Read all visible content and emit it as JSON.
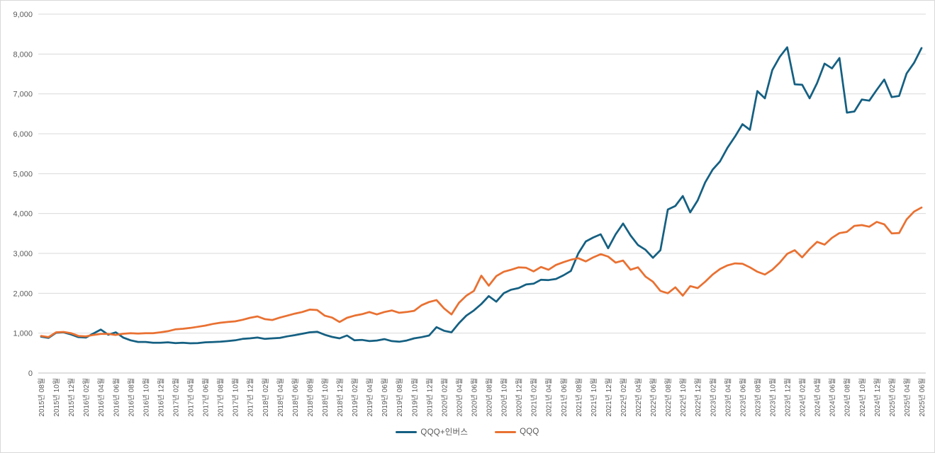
{
  "chart_data": {
    "type": "line",
    "title": "",
    "xlabel": "",
    "ylabel": "",
    "ylim": [
      0,
      9000
    ],
    "y_tick_step": 1000,
    "y_tick_labels": [
      "0",
      "1,000",
      "2,000",
      "3,000",
      "4,000",
      "5,000",
      "6,000",
      "7,000",
      "8,000",
      "9,000"
    ],
    "grid": true,
    "legend_position": "bottom",
    "x_start": "2015년 08월",
    "x_end": "2025년 06월",
    "x_frequency": "monthly",
    "x_label_interval_months": 2,
    "x_labels": [
      "2015년 08월",
      "2015년 10월",
      "2015년 12월",
      "2016년 02월",
      "2016년 04월",
      "2016년 06월",
      "2016년 08월",
      "2016년 10월",
      "2016년 12월",
      "2017년 02월",
      "2017년 04월",
      "2017년 06월",
      "2017년 08월",
      "2017년 10월",
      "2017년 12월",
      "2018년 02월",
      "2018년 04월",
      "2018년 06월",
      "2018년 08월",
      "2018년 10월",
      "2018년 12월",
      "2019년 02월",
      "2019년 04월",
      "2019년 06월",
      "2019년 08월",
      "2019년 10월",
      "2019년 12월",
      "2020년 02월",
      "2020년 04월",
      "2020년 06월",
      "2020년 08월",
      "2020년 10월",
      "2020년 12월",
      "2021년 02월",
      "2021년 04월",
      "2021년 06월",
      "2021년 08월",
      "2021년 10월",
      "2021년 12월",
      "2022년 02월",
      "2022년 04월",
      "2022년 06월",
      "2022년 08월",
      "2022년 10월",
      "2022년 12월",
      "2023년 02월",
      "2023년 04월",
      "2023년 06월",
      "2023년 08월",
      "2023년 10월",
      "2023년 12월",
      "2024년 02월",
      "2024년 04월",
      "2024년 06월",
      "2024년 08월",
      "2024년 10월",
      "2024년 12월",
      "2025년 02월",
      "2025년 04월",
      "2025년 06월"
    ],
    "series": [
      {
        "name": "QQQ+인버스",
        "color": "#156082",
        "values": [
          910,
          880,
          1010,
          1020,
          970,
          900,
          890,
          990,
          1090,
          960,
          1020,
          890,
          820,
          780,
          780,
          760,
          760,
          770,
          750,
          760,
          745,
          750,
          770,
          775,
          785,
          800,
          820,
          855,
          870,
          890,
          855,
          870,
          880,
          920,
          950,
          985,
          1020,
          1035,
          960,
          905,
          870,
          940,
          820,
          830,
          800,
          815,
          850,
          800,
          785,
          815,
          870,
          900,
          940,
          1150,
          1060,
          1020,
          1250,
          1440,
          1570,
          1730,
          1930,
          1790,
          2000,
          2090,
          2130,
          2220,
          2240,
          2340,
          2330,
          2360,
          2450,
          2560,
          3000,
          3300,
          3400,
          3480,
          3130,
          3480,
          3750,
          3450,
          3210,
          3090,
          2890,
          3080,
          4100,
          4190,
          4440,
          4030,
          4330,
          4780,
          5100,
          5310,
          5650,
          5930,
          6240,
          6100,
          7070,
          6890,
          7600,
          7930,
          8170,
          7240,
          7230,
          6890,
          7270,
          7760,
          7640,
          7900,
          6530,
          6560,
          6860,
          6830,
          7100,
          7360,
          6920,
          6950,
          7510,
          7780,
          8150
        ]
      },
      {
        "name": "QQQ",
        "color": "#E97132",
        "values": [
          930,
          900,
          1020,
          1030,
          1000,
          930,
          920,
          955,
          980,
          980,
          955,
          985,
          1000,
          990,
          1000,
          1000,
          1020,
          1050,
          1095,
          1110,
          1130,
          1160,
          1190,
          1230,
          1260,
          1280,
          1295,
          1335,
          1385,
          1420,
          1350,
          1330,
          1390,
          1440,
          1490,
          1530,
          1590,
          1580,
          1440,
          1390,
          1280,
          1385,
          1440,
          1475,
          1530,
          1470,
          1530,
          1570,
          1510,
          1530,
          1560,
          1700,
          1780,
          1830,
          1620,
          1470,
          1760,
          1940,
          2060,
          2440,
          2190,
          2430,
          2540,
          2590,
          2650,
          2640,
          2550,
          2660,
          2590,
          2710,
          2780,
          2840,
          2880,
          2800,
          2900,
          2980,
          2920,
          2770,
          2820,
          2590,
          2650,
          2420,
          2290,
          2060,
          2000,
          2150,
          1940,
          2180,
          2130,
          2290,
          2470,
          2610,
          2700,
          2750,
          2740,
          2650,
          2540,
          2470,
          2590,
          2770,
          2990,
          3080,
          2900,
          3110,
          3290,
          3220,
          3390,
          3510,
          3540,
          3690,
          3710,
          3670,
          3790,
          3730,
          3500,
          3510,
          3850,
          4050,
          4150
        ]
      }
    ],
    "colors": {
      "gridline": "#d9d9d9",
      "axis_line": "#bfbfbf",
      "tick_label": "#595959",
      "background": "#ffffff",
      "border": "#d9d9d9"
    }
  },
  "legend": {
    "items": [
      {
        "label": "QQQ+인버스"
      },
      {
        "label": "QQQ"
      }
    ]
  }
}
